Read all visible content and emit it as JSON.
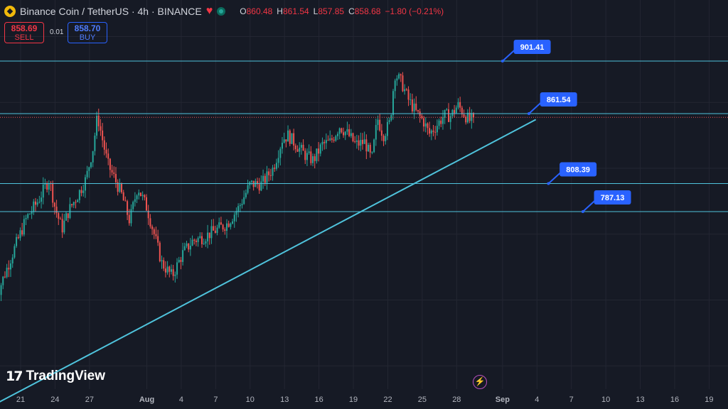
{
  "header": {
    "symbol_title": "Binance Coin / TetherUS · 4h · BINANCE",
    "ohlc": [
      {
        "key": "O",
        "value": "860.48"
      },
      {
        "key": "H",
        "value": "861.54"
      },
      {
        "key": "L",
        "value": "857.85"
      },
      {
        "key": "C",
        "value": "858.68"
      },
      {
        "key": "",
        "value": "−1.80 (−0.21%)"
      }
    ],
    "icons": [
      "bnb-coin-icon",
      "heart-icon",
      "market-status-icon"
    ]
  },
  "trade": {
    "sell_price": "858.69",
    "sell_label": "SELL",
    "spread": "0.01",
    "buy_price": "858.70",
    "buy_label": "BUY"
  },
  "branding": {
    "logo_text": "TradingView"
  },
  "colors": {
    "background": "#161a25",
    "grid": "#232632",
    "up": "#26a69a",
    "down": "#ef5350",
    "drawing": "#4fc3dc",
    "label_bg": "#2962ff"
  },
  "chart_data": {
    "type": "candlestick",
    "symbol": "BNBUSDT",
    "interval": "4h",
    "ylim": [
      625,
      915
    ],
    "x_ticks": [
      {
        "label": "21",
        "day": 0
      },
      {
        "label": "24",
        "day": 3
      },
      {
        "label": "27",
        "day": 6
      },
      {
        "label": "Aug",
        "day": 11
      },
      {
        "label": "4",
        "day": 14
      },
      {
        "label": "7",
        "day": 17
      },
      {
        "label": "10",
        "day": 20
      },
      {
        "label": "13",
        "day": 23
      },
      {
        "label": "16",
        "day": 26
      },
      {
        "label": "19",
        "day": 29
      },
      {
        "label": "22",
        "day": 32
      },
      {
        "label": "25",
        "day": 35
      },
      {
        "label": "28",
        "day": 38
      },
      {
        "label": "Sep",
        "day": 42
      },
      {
        "label": "4",
        "day": 45
      },
      {
        "label": "7",
        "day": 48
      },
      {
        "label": "10",
        "day": 51
      },
      {
        "label": "13",
        "day": 54
      },
      {
        "label": "16",
        "day": 57
      },
      {
        "label": "19",
        "day": 60
      }
    ],
    "horizontal_levels": [
      {
        "price": 901.41,
        "label": "901.41"
      },
      {
        "price": 861.54,
        "label": "861.54"
      },
      {
        "price": 808.39,
        "label": "808.39"
      },
      {
        "price": 787.13,
        "label": "787.13"
      }
    ],
    "trendline": {
      "start": {
        "day": -2.2,
        "price": 641
      },
      "end": {
        "day": 44.9,
        "price": 857
      }
    },
    "last_price": 858.68,
    "price_path": [
      [
        -2.2,
        720
      ],
      [
        -1.5,
        737
      ],
      [
        -0.5,
        760
      ],
      [
        0.5,
        782
      ],
      [
        1.5,
        795
      ],
      [
        2.5,
        812
      ],
      [
        3,
        790
      ],
      [
        3.6,
        774
      ],
      [
        4.2,
        788
      ],
      [
        5,
        800
      ],
      [
        5.7,
        812
      ],
      [
        6.3,
        835
      ],
      [
        6.7,
        860
      ],
      [
        7.1,
        843
      ],
      [
        7.6,
        823
      ],
      [
        8.2,
        812
      ],
      [
        8.8,
        800
      ],
      [
        9.5,
        780
      ],
      [
        10.2,
        806
      ],
      [
        11,
        790
      ],
      [
        11.7,
        768
      ],
      [
        12.3,
        748
      ],
      [
        13.2,
        738
      ],
      [
        14.1,
        755
      ],
      [
        15,
        765
      ],
      [
        16,
        768
      ],
      [
        17,
        773
      ],
      [
        18,
        778
      ],
      [
        19,
        790
      ],
      [
        20,
        808
      ],
      [
        21,
        808
      ],
      [
        22,
        820
      ],
      [
        22.8,
        842
      ],
      [
        23.3,
        845
      ],
      [
        24,
        838
      ],
      [
        24.8,
        830
      ],
      [
        25.5,
        826
      ],
      [
        26.3,
        838
      ],
      [
        27,
        840
      ],
      [
        27.8,
        852
      ],
      [
        28.5,
        846
      ],
      [
        29.2,
        838
      ],
      [
        30,
        840
      ],
      [
        30.6,
        826
      ],
      [
        31.1,
        858
      ],
      [
        31.6,
        845
      ],
      [
        32.2,
        855
      ],
      [
        32.6,
        892
      ],
      [
        33.2,
        885
      ],
      [
        33.8,
        872
      ],
      [
        34.5,
        862
      ],
      [
        35.1,
        856
      ],
      [
        35.6,
        846
      ],
      [
        36.2,
        852
      ],
      [
        36.9,
        860
      ],
      [
        37.5,
        860
      ],
      [
        38.1,
        868
      ],
      [
        38.6,
        862
      ],
      [
        39.1,
        856
      ],
      [
        39.6,
        858.68
      ]
    ]
  }
}
